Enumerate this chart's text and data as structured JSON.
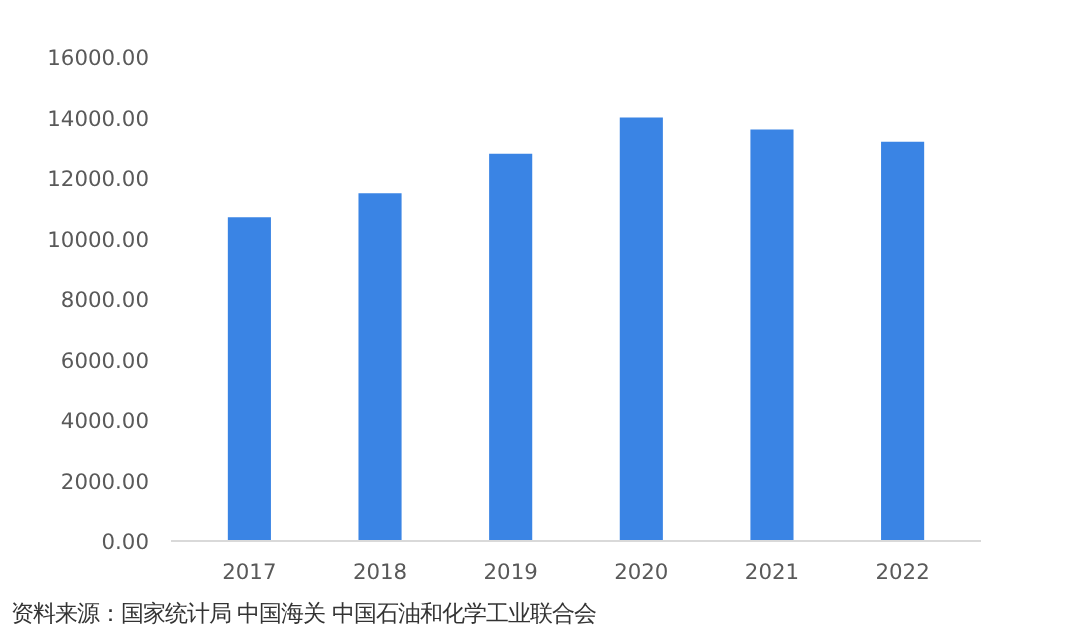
{
  "chart_data": {
    "type": "bar",
    "categories": [
      "2017",
      "2018",
      "2019",
      "2020",
      "2021",
      "2022"
    ],
    "values": [
      10700,
      11500,
      12800,
      14000,
      13600,
      13200
    ],
    "color": "#3a84e4",
    "ylim": [
      0,
      16000
    ],
    "yticks": [
      {
        "value": 0,
        "label": "0.00"
      },
      {
        "value": 2000,
        "label": "2000.00"
      },
      {
        "value": 4000,
        "label": "4000.00"
      },
      {
        "value": 6000,
        "label": "6000.00"
      },
      {
        "value": 8000,
        "label": "8000.00"
      },
      {
        "value": 10000,
        "label": "10000.00"
      },
      {
        "value": 12000,
        "label": "12000.00"
      },
      {
        "value": 14000,
        "label": "14000.00"
      },
      {
        "value": 16000,
        "label": "16000.00"
      }
    ],
    "grid": false,
    "annotations": [
      "资料来源：国家统计局 中国海关 中国石油和化学工业联合会"
    ]
  }
}
